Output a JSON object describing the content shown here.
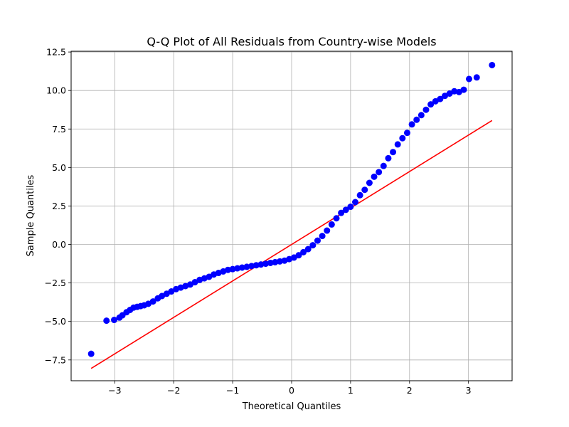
{
  "chart_data": {
    "type": "scatter",
    "title": "Q-Q Plot of All Residuals from Country-wise Models",
    "xlabel": "Theoretical Quantiles",
    "ylabel": "Sample Quantiles",
    "xlim": [
      -3.74,
      3.74
    ],
    "ylim": [
      -8.85,
      12.55
    ],
    "x_ticks": [
      -3,
      -2,
      -1,
      0,
      1,
      2,
      3
    ],
    "x_tick_labels": [
      "−3",
      "−2",
      "−1",
      "0",
      "1",
      "2",
      "3"
    ],
    "y_ticks": [
      -7.5,
      -5.0,
      -2.5,
      0.0,
      2.5,
      5.0,
      7.5,
      10.0,
      12.5
    ],
    "y_tick_labels": [
      "−7.5",
      "−5.0",
      "−2.5",
      "0.0",
      "2.5",
      "5.0",
      "7.5",
      "10.0",
      "12.5"
    ],
    "grid": true,
    "legend": "none",
    "series": [
      {
        "kind": "points",
        "color": "#0000ff",
        "x": [
          -3.4,
          -3.14,
          -3.01,
          -2.92,
          -2.87,
          -2.8,
          -2.74,
          -2.68,
          -2.62,
          -2.56,
          -2.5,
          -2.43,
          -2.35,
          -2.27,
          -2.2,
          -2.12,
          -2.04,
          -1.96,
          -1.88,
          -1.8,
          -1.72,
          -1.64,
          -1.56,
          -1.48,
          -1.4,
          -1.32,
          -1.24,
          -1.16,
          -1.08,
          -1.0,
          -0.92,
          -0.84,
          -0.76,
          -0.68,
          -0.6,
          -0.52,
          -0.44,
          -0.36,
          -0.28,
          -0.2,
          -0.12,
          -0.04,
          0.04,
          0.12,
          0.2,
          0.28,
          0.36,
          0.44,
          0.52,
          0.6,
          0.68,
          0.76,
          0.84,
          0.92,
          1.0,
          1.08,
          1.16,
          1.24,
          1.32,
          1.4,
          1.48,
          1.56,
          1.64,
          1.72,
          1.8,
          1.88,
          1.96,
          2.04,
          2.12,
          2.2,
          2.28,
          2.36,
          2.44,
          2.52,
          2.6,
          2.68,
          2.76,
          2.84,
          2.92,
          3.01,
          3.14,
          3.4
        ],
        "y": [
          -7.1,
          -4.95,
          -4.9,
          -4.75,
          -4.6,
          -4.4,
          -4.25,
          -4.1,
          -4.05,
          -4.0,
          -3.95,
          -3.85,
          -3.7,
          -3.5,
          -3.35,
          -3.2,
          -3.05,
          -2.9,
          -2.8,
          -2.7,
          -2.6,
          -2.45,
          -2.3,
          -2.2,
          -2.1,
          -1.95,
          -1.85,
          -1.75,
          -1.65,
          -1.6,
          -1.55,
          -1.5,
          -1.45,
          -1.4,
          -1.35,
          -1.3,
          -1.25,
          -1.2,
          -1.15,
          -1.1,
          -1.05,
          -0.95,
          -0.85,
          -0.7,
          -0.5,
          -0.3,
          -0.05,
          0.25,
          0.55,
          0.9,
          1.3,
          1.7,
          2.05,
          2.25,
          2.45,
          2.75,
          3.2,
          3.55,
          4.0,
          4.4,
          4.7,
          5.1,
          5.6,
          6.0,
          6.5,
          6.9,
          7.25,
          7.8,
          8.1,
          8.4,
          8.75,
          9.1,
          9.3,
          9.45,
          9.65,
          9.8,
          9.95,
          9.9,
          10.05,
          10.75,
          10.85,
          11.65
        ]
      },
      {
        "kind": "reference-line",
        "color": "#ff0000",
        "x": [
          -3.4,
          3.4
        ],
        "y": [
          -8.05,
          8.05
        ]
      }
    ]
  }
}
